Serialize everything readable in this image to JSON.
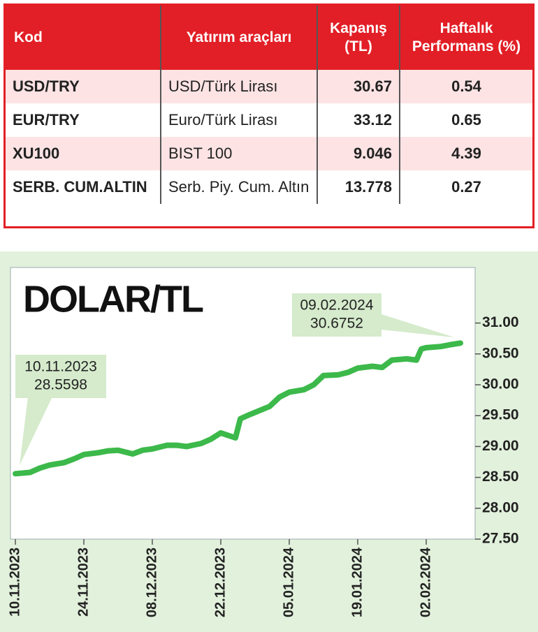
{
  "table": {
    "header": [
      "Kod",
      "Yatırım araçları",
      "Kapanış (TL)",
      "Haftalık Performans (%)"
    ],
    "rows": [
      [
        "USD/TRY",
        "USD/Türk Lirası",
        "30.67",
        "0.54"
      ],
      [
        "EUR/TRY",
        "Euro/Türk Lirası",
        "33.12",
        "0.65"
      ],
      [
        "XU100",
        "BIST 100",
        "9.046",
        "4.39"
      ],
      [
        "SERB. CUM.ALTIN",
        "Serb. Piy. Cum. Altın",
        "13.778",
        "0.27"
      ]
    ]
  },
  "chart_data": {
    "type": "line",
    "title": "DOLAR/TL",
    "x": [
      "10.11.2023",
      "13.11.2023",
      "15.11.2023",
      "17.11.2023",
      "20.11.2023",
      "22.11.2023",
      "24.11.2023",
      "27.11.2023",
      "29.11.2023",
      "01.12.2023",
      "04.12.2023",
      "06.12.2023",
      "08.12.2023",
      "11.12.2023",
      "13.12.2023",
      "15.12.2023",
      "18.12.2023",
      "20.12.2023",
      "22.12.2023",
      "25.12.2023",
      "26.12.2023",
      "28.12.2023",
      "01.01.2024",
      "03.01.2024",
      "05.01.2024",
      "08.01.2024",
      "10.01.2024",
      "12.01.2024",
      "15.01.2024",
      "17.01.2024",
      "19.01.2024",
      "22.01.2024",
      "24.01.2024",
      "26.01.2024",
      "29.01.2024",
      "31.01.2024",
      "01.02.2024",
      "02.02.2024",
      "05.02.2024",
      "07.02.2024",
      "09.02.2024"
    ],
    "series": [
      {
        "name": "DOLAR/TL",
        "color": "#3cb94a",
        "values": [
          28.5598,
          28.58,
          28.65,
          28.7,
          28.74,
          28.8,
          28.87,
          28.9,
          28.93,
          28.94,
          28.88,
          28.94,
          28.96,
          29.02,
          29.02,
          29.0,
          29.05,
          29.12,
          29.22,
          29.14,
          29.45,
          29.52,
          29.65,
          29.8,
          29.88,
          29.92,
          30.0,
          30.15,
          30.16,
          30.2,
          30.27,
          30.3,
          30.28,
          30.4,
          30.42,
          30.4,
          30.58,
          30.6,
          30.62,
          30.65,
          30.6752
        ]
      }
    ],
    "xlim": [
      "09.11.2023",
      "12.02.2024"
    ],
    "xticks": [
      "10.11.2023",
      "24.11.2023",
      "08.12.2023",
      "22.12.2023",
      "05.01.2024",
      "19.01.2024",
      "02.02.2024"
    ],
    "ylim": [
      27.5,
      31.9
    ],
    "yticks": [
      {
        "value": 27.5,
        "label": "27.50"
      },
      {
        "value": 28,
        "label": "28.00"
      },
      {
        "value": 28.5,
        "label": "28.50"
      },
      {
        "value": 29,
        "label": "29.00"
      },
      {
        "value": 29.5,
        "label": "29.50"
      },
      {
        "value": 30,
        "label": "30.00"
      },
      {
        "value": 30.5,
        "label": "30.50"
      },
      {
        "value": 31,
        "label": "31.00"
      }
    ],
    "grid": false
  }
}
